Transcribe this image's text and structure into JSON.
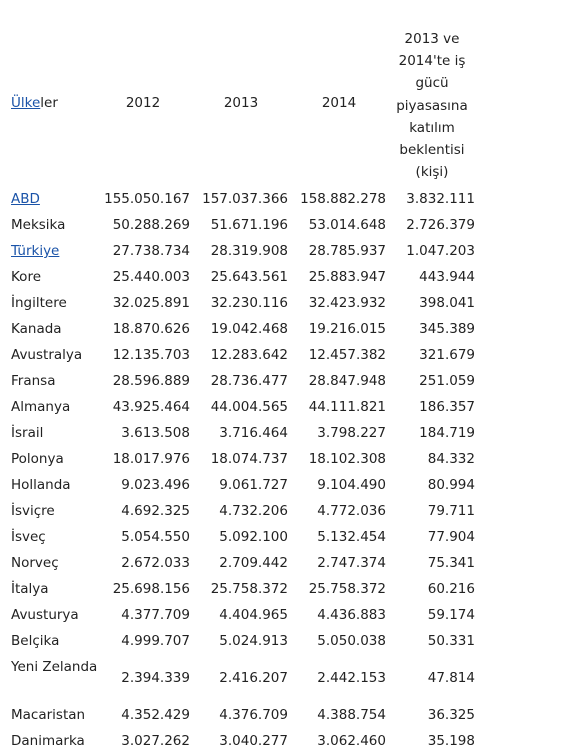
{
  "headers": {
    "country": "Ülkeler",
    "country_underlined": "Ülke",
    "country_rest": "ler",
    "y2012": "2012",
    "y2013": "2013",
    "y2014": "2014",
    "expectation_lines": [
      "2013 ve",
      "2014'te iş",
      "gücü",
      "piyasasına",
      "katılım",
      "beklentisi",
      "(kişi)"
    ]
  },
  "link_color": "#1a53a8",
  "rows": [
    {
      "country": "ABD",
      "link": true,
      "v2012": "155.050.167",
      "v2013": "157.037.366",
      "v2014": "158.882.278",
      "exp": "3.832.111"
    },
    {
      "country": "Meksika",
      "link": false,
      "v2012": "50.288.269",
      "v2013": "51.671.196",
      "v2014": "53.014.648",
      "exp": "2.726.379"
    },
    {
      "country": "Türkiye",
      "link": true,
      "v2012": "27.738.734",
      "v2013": "28.319.908",
      "v2014": "28.785.937",
      "exp": "1.047.203"
    },
    {
      "country": "Kore",
      "link": false,
      "v2012": "25.440.003",
      "v2013": "25.643.561",
      "v2014": "25.883.947",
      "exp": "443.944"
    },
    {
      "country": "İngiltere",
      "link": false,
      "v2012": "32.025.891",
      "v2013": "32.230.116",
      "v2014": "32.423.932",
      "exp": "398.041"
    },
    {
      "country": "Kanada",
      "link": false,
      "v2012": "18.870.626",
      "v2013": "19.042.468",
      "v2014": "19.216.015",
      "exp": "345.389"
    },
    {
      "country": "Avustralya",
      "link": false,
      "v2012": "12.135.703",
      "v2013": "12.283.642",
      "v2014": "12.457.382",
      "exp": "321.679"
    },
    {
      "country": "Fransa",
      "link": false,
      "v2012": "28.596.889",
      "v2013": "28.736.477",
      "v2014": "28.847.948",
      "exp": "251.059"
    },
    {
      "country": "Almanya",
      "link": false,
      "v2012": "43.925.464",
      "v2013": "44.004.565",
      "v2014": "44.111.821",
      "exp": "186.357"
    },
    {
      "country": "İsrail",
      "link": false,
      "v2012": "3.613.508",
      "v2013": "3.716.464",
      "v2014": "3.798.227",
      "exp": "184.719"
    },
    {
      "country": "Polonya",
      "link": false,
      "v2012": "18.017.976",
      "v2013": "18.074.737",
      "v2014": "18.102.308",
      "exp": "84.332"
    },
    {
      "country": "Hollanda",
      "link": false,
      "v2012": "9.023.496",
      "v2013": "9.061.727",
      "v2014": "9.104.490",
      "exp": "80.994"
    },
    {
      "country": "İsviçre",
      "link": false,
      "v2012": "4.692.325",
      "v2013": "4.732.206",
      "v2014": "4.772.036",
      "exp": "79.711"
    },
    {
      "country": "İsveç",
      "link": false,
      "v2012": "5.054.550",
      "v2013": "5.092.100",
      "v2014": "5.132.454",
      "exp": "77.904"
    },
    {
      "country": "Norveç",
      "link": false,
      "v2012": "2.672.033",
      "v2013": "2.709.442",
      "v2014": "2.747.374",
      "exp": "75.341"
    },
    {
      "country": "İtalya",
      "link": false,
      "v2012": "25.698.156",
      "v2013": "25.758.372",
      "v2014": "25.758.372",
      "exp": "60.216"
    },
    {
      "country": "Avusturya",
      "link": false,
      "v2012": "4.377.709",
      "v2013": "4.404.965",
      "v2014": "4.436.883",
      "exp": "59.174"
    },
    {
      "country": "Belçika",
      "link": false,
      "v2012": "4.999.707",
      "v2013": "5.024.913",
      "v2014": "5.050.038",
      "exp": "50.331"
    },
    {
      "country": "Yeni Zelanda",
      "link": false,
      "v2012": "2.394.339",
      "v2013": "2.416.207",
      "v2014": "2.442.153",
      "exp": "47.814"
    },
    {
      "country": "Macaristan",
      "link": false,
      "v2012": "4.352.429",
      "v2013": "4.376.709",
      "v2014": "4.388.754",
      "exp": "36.325"
    },
    {
      "country": "Danimarka",
      "link": false,
      "v2012": "3.027.262",
      "v2013": "3.040.277",
      "v2014": "3.062.460",
      "exp": "35.198"
    }
  ]
}
